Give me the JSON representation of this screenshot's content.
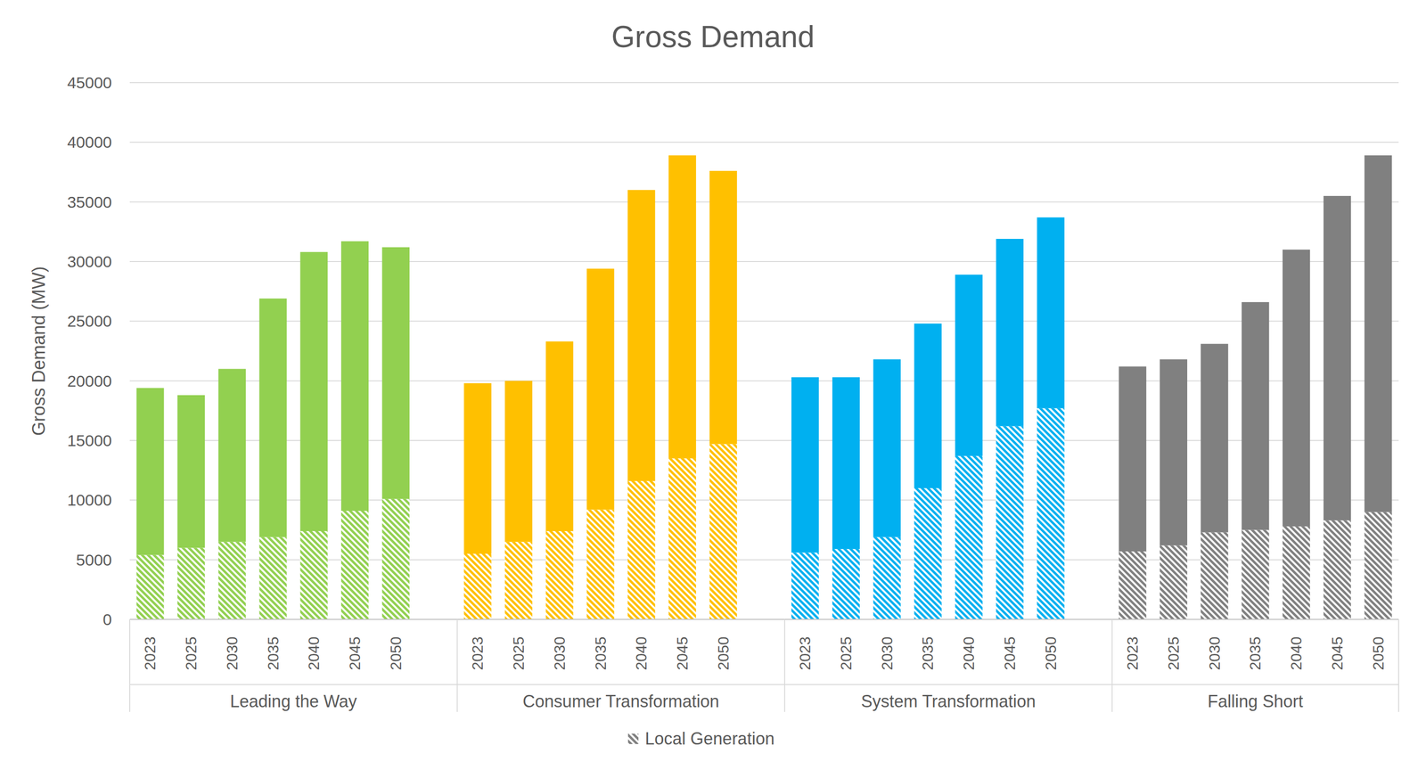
{
  "chart_data": {
    "type": "bar",
    "title": "Gross Demand",
    "y_label": "Gross Demand (MW)",
    "stacked": true,
    "grid": true,
    "legend": "bottom",
    "groups": [
      "Leading the Way",
      "Consumer Transformation",
      "System Transformation",
      "Falling Short"
    ],
    "categories": [
      "2023",
      "2025",
      "2030",
      "2035",
      "2040",
      "2045",
      "2050",
      "2023",
      "2025",
      "2030",
      "2035",
      "2040",
      "2045",
      "2050",
      "2023",
      "2025",
      "2030",
      "2035",
      "2040",
      "2045",
      "2050",
      "2023",
      "2025",
      "2030",
      "2035",
      "2040",
      "2045",
      "2050"
    ],
    "series": [
      {
        "name": "Local Generation",
        "colors": [
          "#92d050",
          "#92d050",
          "#92d050",
          "#92d050",
          "#92d050",
          "#92d050",
          "#92d050",
          "#ffc000",
          "#ffc000",
          "#ffc000",
          "#ffc000",
          "#ffc000",
          "#ffc000",
          "#ffc000",
          "#00b0f0",
          "#00b0f0",
          "#00b0f0",
          "#00b0f0",
          "#00b0f0",
          "#00b0f0",
          "#00b0f0",
          "#808080",
          "#808080",
          "#808080",
          "#808080",
          "#808080",
          "#808080",
          "#808080"
        ],
        "values": [
          5400,
          6000,
          6500,
          6900,
          7400,
          9100,
          10100,
          5500,
          6500,
          7400,
          9200,
          11600,
          13500,
          14700,
          5600,
          5900,
          6900,
          11000,
          13700,
          16200,
          17700,
          5700,
          6200,
          7300,
          7500,
          7800,
          8300,
          9000
        ]
      },
      {
        "colors": [
          "#92d050",
          "#92d050",
          "#92d050",
          "#92d050",
          "#92d050",
          "#92d050",
          "#92d050",
          "#ffc000",
          "#ffc000",
          "#ffc000",
          "#ffc000",
          "#ffc000",
          "#ffc000",
          "#ffc000",
          "#00b0f0",
          "#00b0f0",
          "#00b0f0",
          "#00b0f0",
          "#00b0f0",
          "#00b0f0",
          "#00b0f0",
          "#808080",
          "#808080",
          "#808080",
          "#808080",
          "#808080",
          "#808080",
          "#808080"
        ],
        "values": [
          14000,
          12800,
          14500,
          20000,
          23400,
          22600,
          21100,
          14300,
          13500,
          15900,
          20200,
          24400,
          25400,
          22900,
          14700,
          14400,
          14900,
          13800,
          15200,
          15700,
          16000,
          15500,
          15600,
          15800,
          19100,
          23200,
          27200,
          29900
        ]
      }
    ],
    "ylim": [
      0,
      45000
    ],
    "yticks": [
      0,
      5000,
      10000,
      15000,
      20000,
      25000,
      30000,
      35000,
      40000,
      45000
    ]
  }
}
